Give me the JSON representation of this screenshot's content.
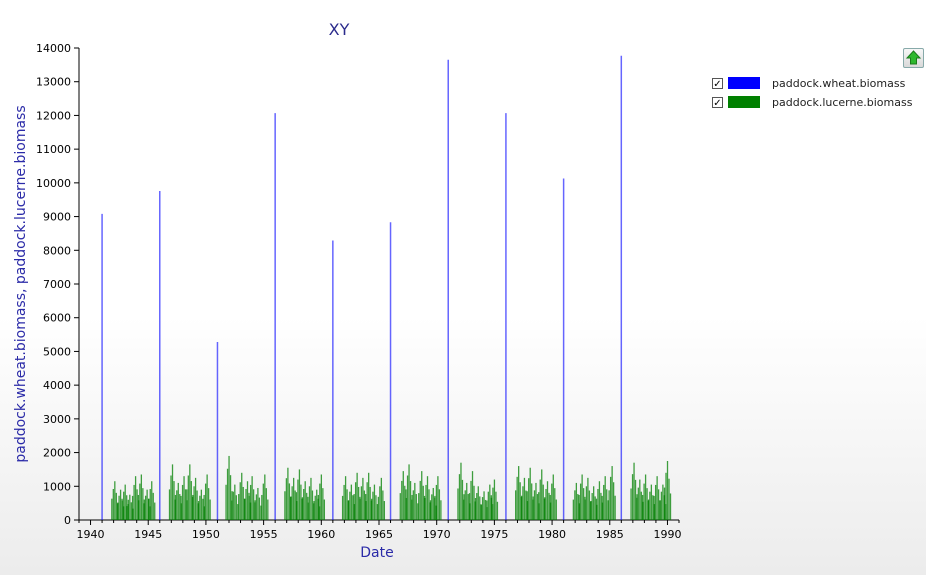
{
  "chart_data": {
    "type": "bar",
    "title": "XY",
    "xlabel": "Date",
    "ylabel": "paddock.wheat.biomass, paddock.lucerne.biomass",
    "xlim": [
      1939.0,
      1991.0
    ],
    "ylim": [
      0,
      14000
    ],
    "xticks": [
      "1940",
      "1945",
      "1950",
      "1955",
      "1960",
      "1965",
      "1970",
      "1975",
      "1980",
      "1985",
      "1990"
    ],
    "yticks": [
      "0",
      "1000",
      "2000",
      "3000",
      "4000",
      "5000",
      "6000",
      "7000",
      "8000",
      "9000",
      "10000",
      "11000",
      "12000",
      "13000",
      "14000"
    ],
    "legend_position": "top-right",
    "series": [
      {
        "name": "paddock.wheat.biomass",
        "color": "#0000ff",
        "x": [
          1941.0,
          1946.0,
          1951.0,
          1956.0,
          1961.0,
          1966.0,
          1971.0,
          1976.0,
          1981.0,
          1986.0
        ],
        "values": [
          9080,
          9760,
          5280,
          12070,
          8290,
          8830,
          13650,
          12070,
          10130,
          13770
        ]
      },
      {
        "name": "paddock.lucerne.biomass",
        "color": "#008000",
        "note": "dense daily bars during lucerne phases (roughly 4-year blocks between wheat harvests)",
        "x": [
          1942.1,
          1942.6,
          1943.0,
          1943.4,
          1943.9,
          1944.4,
          1944.9,
          1945.3,
          1947.1,
          1947.6,
          1948.1,
          1948.6,
          1949.1,
          1949.6,
          1950.1,
          1952.0,
          1952.5,
          1953.1,
          1953.6,
          1954.0,
          1954.5,
          1955.1,
          1957.1,
          1957.6,
          1958.1,
          1958.6,
          1959.1,
          1959.6,
          1960.0,
          1962.1,
          1962.6,
          1963.1,
          1963.6,
          1964.1,
          1964.6,
          1965.2,
          1967.1,
          1967.6,
          1968.1,
          1968.7,
          1969.2,
          1969.7,
          1970.1,
          1972.1,
          1972.6,
          1973.1,
          1973.6,
          1974.1,
          1974.6,
          1975.0,
          1977.1,
          1977.6,
          1978.1,
          1978.6,
          1979.1,
          1979.6,
          1980.1,
          1982.1,
          1982.6,
          1983.1,
          1983.6,
          1984.1,
          1984.6,
          1985.2,
          1987.1,
          1987.6,
          1988.1,
          1988.6,
          1989.1,
          1989.6,
          1990.0
        ],
        "values": [
          1150,
          900,
          1050,
          750,
          1300,
          1350,
          900,
          1150,
          1650,
          1100,
          1300,
          1650,
          1250,
          900,
          1350,
          1900,
          1050,
          1400,
          1150,
          1300,
          950,
          1350,
          1550,
          1250,
          1500,
          1150,
          1250,
          900,
          1350,
          1300,
          1050,
          1400,
          1250,
          1400,
          1050,
          1250,
          1450,
          1650,
          1100,
          1450,
          1300,
          950,
          1300,
          1700,
          1100,
          1450,
          1000,
          850,
          1050,
          1200,
          1600,
          1250,
          1550,
          1100,
          1500,
          1150,
          1350,
          1100,
          1350,
          1250,
          1000,
          1150,
          1300,
          1600,
          1700,
          1200,
          1350,
          1050,
          1300,
          1050,
          1750
        ]
      }
    ]
  },
  "legend": {
    "items": [
      {
        "label": "paddock.wheat.biomass",
        "checked": "✓",
        "color": "#0000ff"
      },
      {
        "label": "paddock.lucerne.biomass",
        "checked": "✓",
        "color": "#008000"
      }
    ]
  },
  "toolbar": {
    "export_icon": "green-up-arrow-icon"
  }
}
